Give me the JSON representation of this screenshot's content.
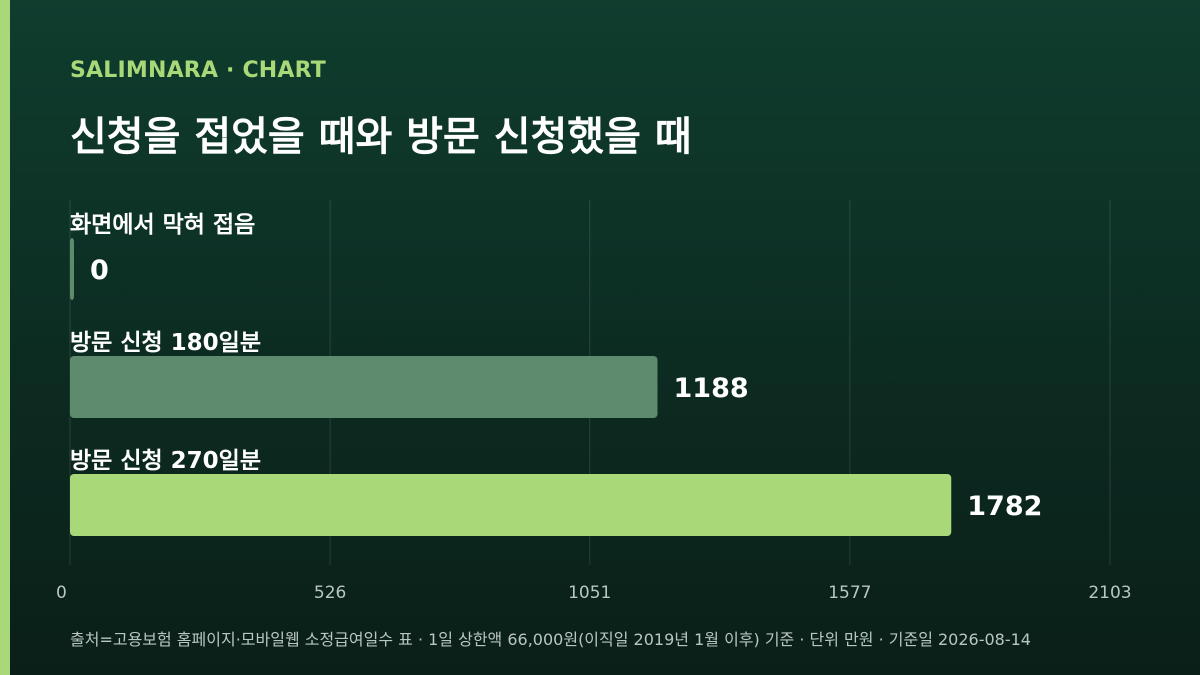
{
  "header": {
    "brand": "SALIMNARA · CHART",
    "title": "신청을 접었을 때와 방문 신청했을 때"
  },
  "footer": {
    "source": "출처=고용보험 홈페이지·모바일웹 소정급여일수 표 · 1일 상한액 66,000원(이직일 2019년 1월 이후) 기준 · 단위 만원 · 기준일 2026-08-14"
  },
  "colors": {
    "accent": "#a8d878",
    "bar_muted": "#5e8b6e",
    "bar_highlight": "#a8d878"
  },
  "chart_data": {
    "type": "bar",
    "orientation": "horizontal",
    "categories": [
      "화면에서 막혀 접음",
      "방문 신청 180일분",
      "방문 신청 270일분"
    ],
    "values": [
      0,
      1188,
      1782
    ],
    "value_labels": [
      "0",
      "1188",
      "1782"
    ],
    "xlim": [
      0,
      2103
    ],
    "xticks": [
      "0",
      "526",
      "1051",
      "1577",
      "2103"
    ],
    "grid": true,
    "legend": "none"
  }
}
